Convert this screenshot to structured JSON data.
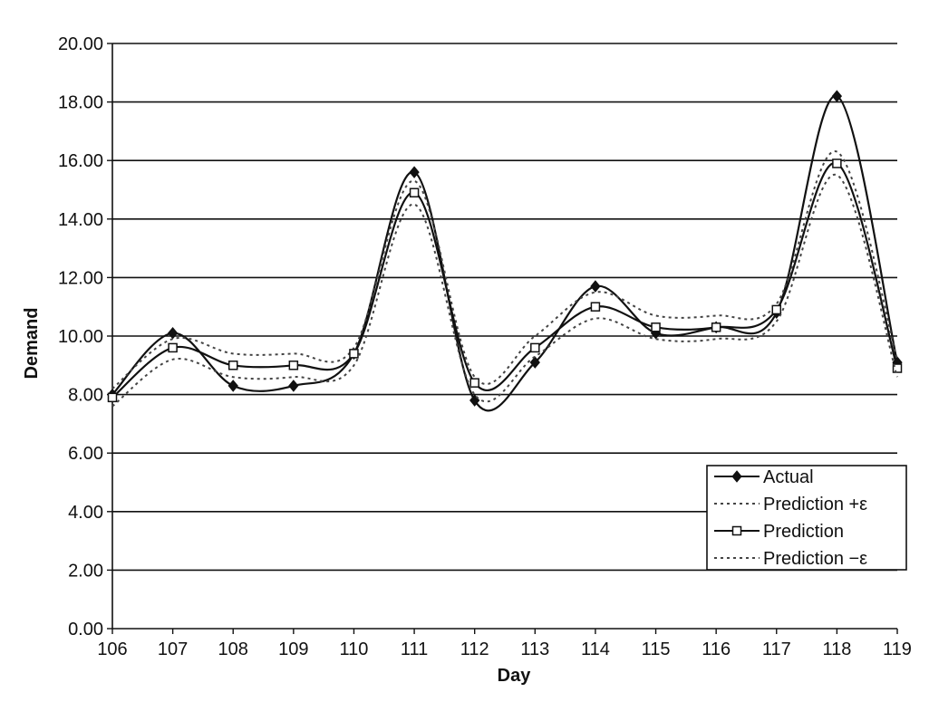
{
  "chart_data": {
    "type": "line",
    "title": "",
    "xlabel": "Day",
    "ylabel": "Demand",
    "x": [
      106,
      107,
      108,
      109,
      110,
      111,
      112,
      113,
      114,
      115,
      116,
      117,
      118,
      119
    ],
    "xlim": [
      106,
      119
    ],
    "ylim": [
      0,
      20
    ],
    "yticks": [
      "0.00",
      "2.00",
      "4.00",
      "6.00",
      "8.00",
      "10.00",
      "12.00",
      "14.00",
      "16.00",
      "18.00",
      "20.00"
    ],
    "xticks": [
      "106",
      "107",
      "108",
      "109",
      "110",
      "111",
      "112",
      "113",
      "114",
      "115",
      "116",
      "117",
      "118",
      "119"
    ],
    "grid": "horizontal",
    "legend_position": "bottom-right",
    "series": [
      {
        "name": "Actual",
        "marker": "diamond",
        "style": "solid",
        "values": [
          8.0,
          10.1,
          8.3,
          8.3,
          9.4,
          15.6,
          7.8,
          9.1,
          11.7,
          10.1,
          10.3,
          10.8,
          18.2,
          9.1
        ]
      },
      {
        "name": "Prediction +ε",
        "marker": "none",
        "style": "dotted",
        "values": [
          8.2,
          9.9,
          9.4,
          9.4,
          9.6,
          15.3,
          8.6,
          10.0,
          11.5,
          10.7,
          10.7,
          11.1,
          16.3,
          9.2
        ]
      },
      {
        "name": "Prediction",
        "marker": "square",
        "style": "solid",
        "values": [
          7.9,
          9.6,
          9.0,
          9.0,
          9.4,
          14.9,
          8.4,
          9.6,
          11.0,
          10.3,
          10.3,
          10.9,
          15.9,
          8.9
        ]
      },
      {
        "name": "Prediction −ε",
        "marker": "none",
        "style": "dotted",
        "values": [
          7.6,
          9.2,
          8.6,
          8.6,
          9.0,
          14.5,
          8.0,
          9.3,
          10.6,
          9.9,
          9.9,
          10.5,
          15.5,
          8.6
        ]
      }
    ],
    "colors": {
      "line": "#111111",
      "grid": "#111111",
      "background": "#ffffff"
    }
  }
}
